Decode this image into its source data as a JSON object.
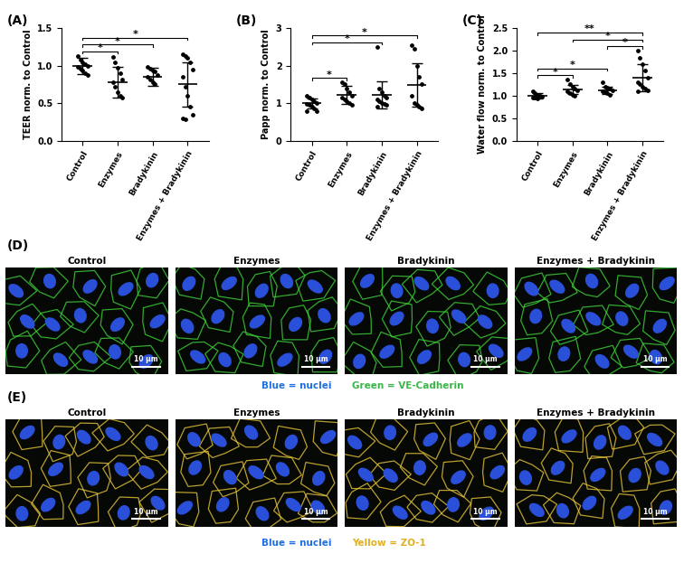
{
  "chart_data": [
    {
      "type": "scatter",
      "panel": "(A)",
      "y_label": "TEER norm. to Control",
      "categories": [
        "Control",
        "Enzymes",
        "Bradykinin",
        "Enzymes + Bradykinin"
      ],
      "values": [
        [
          1.13,
          1.08,
          1.05,
          1.02,
          1.0,
          0.98,
          0.96,
          0.93,
          0.9,
          0.88
        ],
        [
          1.12,
          1.05,
          0.97,
          0.9,
          0.82,
          0.78,
          0.72,
          0.65,
          0.6,
          0.58
        ],
        [
          0.98,
          0.96,
          0.94,
          0.92,
          0.88,
          0.85,
          0.82,
          0.78,
          0.75
        ],
        [
          1.15,
          1.13,
          1.1,
          1.05,
          0.95,
          0.85,
          0.72,
          0.6,
          0.45,
          0.35,
          0.3,
          0.28
        ]
      ],
      "mean": [
        1.0,
        0.78,
        0.85,
        0.75
      ],
      "sd": [
        0.11,
        0.2,
        0.12,
        0.3
      ],
      "color": "#000000",
      "marker": "o",
      "ylim": [
        0,
        1.5
      ],
      "yticks": [
        {
          "value": 0,
          "label": "0.0"
        },
        {
          "value": 0.5,
          "label": "0.5"
        },
        {
          "value": 1.0,
          "label": "1.0"
        },
        {
          "value": 1.5,
          "label": "1.5"
        }
      ],
      "significance": [
        {
          "from": 0,
          "to": 1,
          "label": "*"
        },
        {
          "from": 0,
          "to": 2,
          "label": "*"
        },
        {
          "from": 0,
          "to": 3,
          "label": "*"
        }
      ]
    },
    {
      "type": "scatter",
      "panel": "(B)",
      "y_label": "Papp norm. to Control",
      "categories": [
        "Control",
        "Enzymes",
        "Bradykinin",
        "Enzymes + Bradykinin"
      ],
      "values": [
        [
          1.2,
          1.15,
          1.1,
          1.05,
          1.0,
          0.98,
          0.95,
          0.9,
          0.85,
          0.8,
          0.78
        ],
        [
          1.55,
          1.5,
          1.4,
          1.3,
          1.2,
          1.15,
          1.1,
          1.05,
          1.0,
          0.95
        ],
        [
          2.5,
          1.4,
          1.3,
          1.2,
          1.15,
          1.1,
          1.05,
          1.0,
          0.98,
          0.95,
          0.9
        ],
        [
          2.55,
          2.45,
          2.0,
          1.7,
          1.5,
          1.2,
          1.0,
          0.95,
          0.9,
          0.85
        ]
      ],
      "mean": [
        1.0,
        1.22,
        1.22,
        1.48
      ],
      "sd": [
        0.13,
        0.25,
        0.37,
        0.58
      ],
      "color": "#000000",
      "marker": "o",
      "ylim": [
        0,
        3
      ],
      "yticks": [
        0,
        1,
        2,
        3
      ],
      "significance": [
        {
          "from": 0,
          "to": 1,
          "label": "*"
        },
        {
          "from": 0,
          "to": 2,
          "label": "*"
        },
        {
          "from": 0,
          "to": 3,
          "label": "*"
        }
      ]
    },
    {
      "type": "scatter",
      "panel": "(C)",
      "y_label": "Water flow norm. to Control",
      "categories": [
        "Control",
        "Enzymes",
        "Bradykinin",
        "Enzymes + Bradykinin"
      ],
      "values": [
        [
          1.1,
          1.05,
          1.02,
          1.0,
          0.98,
          0.96,
          0.95,
          0.93
        ],
        [
          1.35,
          1.25,
          1.2,
          1.15,
          1.12,
          1.1,
          1.05,
          1.02,
          1.0
        ],
        [
          1.3,
          1.2,
          1.18,
          1.15,
          1.12,
          1.1,
          1.08,
          1.05,
          1.02
        ],
        [
          2.0,
          1.85,
          1.7,
          1.55,
          1.4,
          1.3,
          1.25,
          1.2,
          1.15,
          1.12,
          1.1
        ]
      ],
      "mean": [
        1.0,
        1.14,
        1.12,
        1.4
      ],
      "sd": [
        0.06,
        0.1,
        0.08,
        0.3
      ],
      "color": "#000000",
      "marker": "o",
      "ylim": [
        0,
        2.5
      ],
      "yticks": [
        {
          "value": 0,
          "label": "0.0"
        },
        {
          "value": 0.5,
          "label": "0.5"
        },
        {
          "value": 1.0,
          "label": "1.0"
        },
        {
          "value": 1.5,
          "label": "1.5"
        },
        {
          "value": 2.0,
          "label": "2.0"
        },
        {
          "value": 2.5,
          "label": "2.5"
        }
      ],
      "significance": [
        {
          "from": 0,
          "to": 1,
          "label": "*"
        },
        {
          "from": 0,
          "to": 2,
          "label": "*"
        },
        {
          "from": 0,
          "to": 3,
          "label": "**"
        },
        {
          "from": 1,
          "to": 3,
          "label": "*"
        },
        {
          "from": 2,
          "to": 3,
          "label": "*"
        }
      ]
    }
  ],
  "image_panels": [
    {
      "panel": "(D)",
      "titles": [
        "Control",
        "Enzymes",
        "Bradykinin",
        "Enzymes + Bradykinin"
      ],
      "scale_bar": "10 µm",
      "stain_color": "#3fd23a",
      "caption": [
        {
          "text": "Blue = nuclei",
          "color": "#1f6fe0"
        },
        {
          "text": "Green = VE-Cadherin",
          "color": "#39b54a"
        }
      ]
    },
    {
      "panel": "(E)",
      "titles": [
        "Control",
        "Enzymes",
        "Bradykinin",
        "Enzymes + Bradykinin"
      ],
      "scale_bar": "10 µm",
      "stain_color": "#e8c53a",
      "caption": [
        {
          "text": "Blue = nuclei",
          "color": "#1f6fe0"
        },
        {
          "text": "Yellow = ZO-1",
          "color": "#e0b020"
        }
      ]
    }
  ]
}
